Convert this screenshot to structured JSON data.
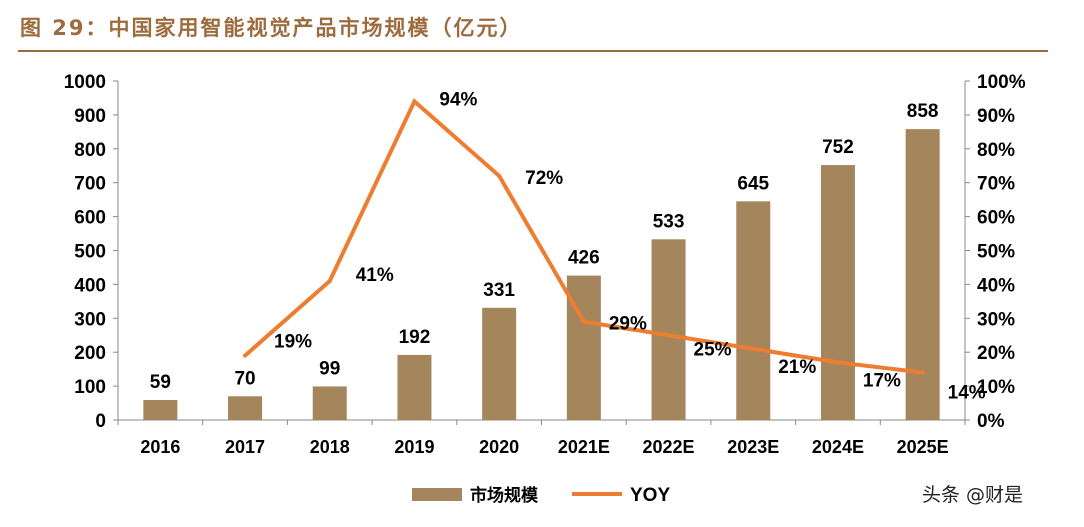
{
  "title": "图 29：中国家用智能视觉产品市场规模（亿元）",
  "watermark": "头条 @财是",
  "chart_data": {
    "type": "bar+line",
    "categories": [
      "2016",
      "2017",
      "2018",
      "2019",
      "2020",
      "2021E",
      "2022E",
      "2023E",
      "2024E",
      "2025E"
    ],
    "series": [
      {
        "name": "市场规模",
        "type": "bar",
        "axis": "left",
        "color": "#A5855C",
        "values": [
          59,
          70,
          99,
          192,
          331,
          426,
          533,
          645,
          752,
          858
        ],
        "labels": [
          "59",
          "70",
          "99",
          "192",
          "331",
          "426",
          "533",
          "645",
          "752",
          "858"
        ]
      },
      {
        "name": "YOY",
        "type": "line",
        "axis": "right",
        "color": "#ED7D31",
        "values": [
          null,
          19,
          41,
          94,
          72,
          29,
          25,
          21,
          17,
          14
        ],
        "labels": [
          "",
          "19%",
          "41%",
          "94%",
          "72%",
          "29%",
          "25%",
          "21%",
          "17%",
          "14%"
        ]
      }
    ],
    "left_axis": {
      "range": [
        0,
        1000
      ],
      "ticks": [
        "0",
        "100",
        "200",
        "300",
        "400",
        "500",
        "600",
        "700",
        "800",
        "900",
        "1000"
      ]
    },
    "right_axis": {
      "range": [
        0,
        100
      ],
      "ticks": [
        "0%",
        "10%",
        "20%",
        "30%",
        "40%",
        "50%",
        "60%",
        "70%",
        "80%",
        "90%",
        "100%"
      ]
    },
    "grid": false,
    "legend": "bottom"
  }
}
